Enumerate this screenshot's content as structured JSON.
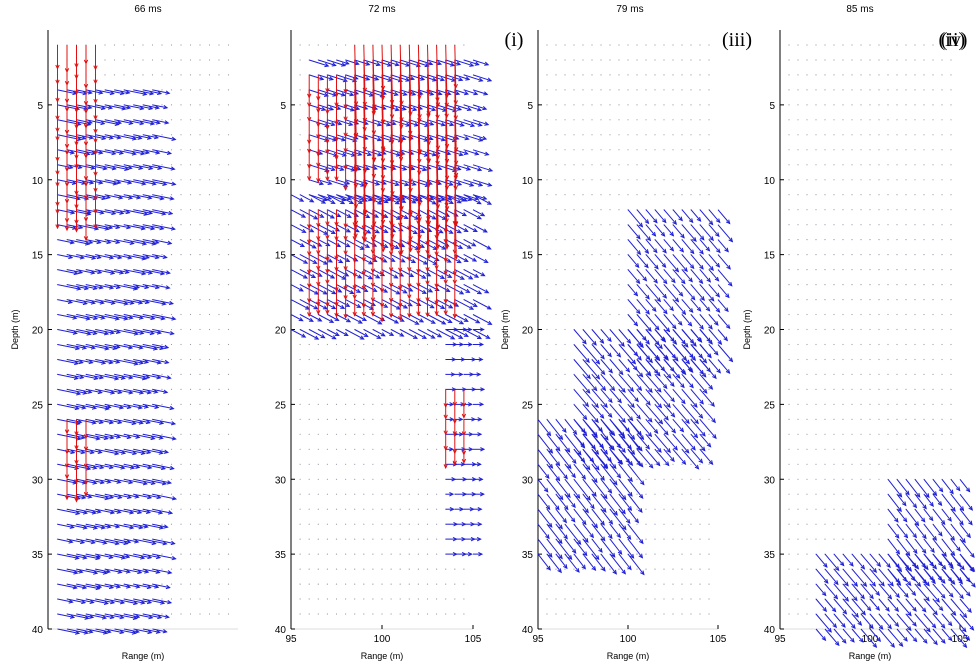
{
  "chart_data": [
    {
      "type": "quiver",
      "title": "66 ms",
      "panel_label": "",
      "xlabel": "Range (m)",
      "ylabel": "Depth (m)",
      "xlim": [
        95,
        105
      ],
      "ylim": [
        40,
        0
      ],
      "y_inverted": true,
      "x_ticks": [],
      "y_ticks": [
        5,
        10,
        15,
        20,
        25,
        30,
        35,
        40
      ],
      "grid": "dotted points",
      "series": [
        {
          "color": "#1f1fd6",
          "field": [
            {
              "x_range": [
                95.5,
                100.5
              ],
              "depth_range": [
                4,
                40
              ],
              "dir": [
                1.0,
                0.1
              ],
              "mag": 0.95
            }
          ]
        },
        {
          "color": "#e01010",
          "field": [
            {
              "x_range": [
                95.5,
                97.5
              ],
              "depth_range": [
                1,
                12
              ],
              "dir": [
                0.0,
                1.0
              ],
              "mag": 0.6
            },
            {
              "x_range": [
                96,
                97
              ],
              "depth_range": [
                26,
                30
              ],
              "dir": [
                0.0,
                1.0
              ],
              "mag": 0.45
            }
          ]
        }
      ]
    },
    {
      "type": "quiver",
      "title": "72 ms",
      "panel_label": "(i)",
      "xlabel": "Range (m)",
      "ylabel": "",
      "xlim": [
        95,
        105
      ],
      "ylim": [
        40,
        0
      ],
      "y_inverted": true,
      "x_ticks": [
        95,
        100,
        105
      ],
      "y_ticks": [
        5,
        10,
        15,
        20,
        25,
        30,
        35,
        40
      ],
      "grid": "dotted points",
      "series": [
        {
          "color": "#1f1fd6",
          "field": [
            {
              "x_range": [
                96,
                105
              ],
              "depth_range": [
                2,
                11
              ],
              "dir": [
                1.0,
                0.15
              ],
              "mag": 0.85
            },
            {
              "x_range": [
                95,
                105
              ],
              "depth_range": [
                11,
                20
              ],
              "dir": [
                1.0,
                0.25
              ],
              "mag": 0.8
            },
            {
              "x_range": [
                103.5,
                105
              ],
              "depth_range": [
                20,
                35
              ],
              "dir": [
                1.0,
                0.0
              ],
              "mag": 0.5
            }
          ]
        },
        {
          "color": "#e01010",
          "field": [
            {
              "x_range": [
                98.5,
                104
              ],
              "depth_range": [
                1,
                11
              ],
              "dir": [
                0.05,
                1.0
              ],
              "mag": 1.3
            },
            {
              "x_range": [
                96,
                98
              ],
              "depth_range": [
                3,
                9
              ],
              "dir": [
                0.0,
                1.0
              ],
              "mag": 0.5
            },
            {
              "x_range": [
                96,
                104
              ],
              "depth_range": [
                12,
                18
              ],
              "dir": [
                0.0,
                1.0
              ],
              "mag": 0.45
            },
            {
              "x_range": [
                103.5,
                104.5
              ],
              "depth_range": [
                24,
                28
              ],
              "dir": [
                0.0,
                1.0
              ],
              "mag": 0.4
            }
          ]
        }
      ]
    },
    {
      "type": "quiver",
      "title": "79 ms",
      "panel_label": "(ii)",
      "xlabel": "Range (m)",
      "ylabel": "Depth (m)",
      "xlim": [
        95,
        105
      ],
      "ylim": [
        40,
        0
      ],
      "y_inverted": true,
      "x_ticks": [
        95,
        100,
        105
      ],
      "y_ticks": [
        5,
        10,
        15,
        20,
        25,
        30,
        35,
        40
      ],
      "grid": "dotted points",
      "series": [
        {
          "color": "#1f1fd6",
          "field": [
            {
              "x_range": [
                100,
                105
              ],
              "depth_range": [
                12,
                22
              ],
              "dir": [
                1.0,
                0.55
              ],
              "mag": 0.7
            },
            {
              "x_range": [
                97,
                104
              ],
              "depth_range": [
                20,
                28
              ],
              "dir": [
                1.0,
                0.55
              ],
              "mag": 0.8
            },
            {
              "x_range": [
                95,
                100
              ],
              "depth_range": [
                26,
                35
              ],
              "dir": [
                1.0,
                0.6
              ],
              "mag": 0.8
            }
          ]
        }
      ],
      "panel_tag_right": "(iii)"
    },
    {
      "type": "quiver",
      "title": "85 ms",
      "panel_label": "(iv)",
      "xlabel": "Range (m)",
      "ylabel": "Depth (m)",
      "xlim": [
        95,
        105
      ],
      "ylim": [
        40,
        0
      ],
      "y_inverted": true,
      "x_ticks": [
        95,
        100,
        105
      ],
      "y_ticks": [
        5,
        10,
        15,
        20,
        25,
        30,
        35,
        40
      ],
      "grid": "dotted points",
      "series": [
        {
          "color": "#1f1fd6",
          "field": [
            {
              "x_range": [
                101,
                105
              ],
              "depth_range": [
                30,
                36
              ],
              "dir": [
                1.0,
                0.6
              ],
              "mag": 0.7
            },
            {
              "x_range": [
                97,
                105
              ],
              "depth_range": [
                35,
                40
              ],
              "dir": [
                1.0,
                0.55
              ],
              "mag": 0.75
            }
          ]
        }
      ]
    }
  ]
}
